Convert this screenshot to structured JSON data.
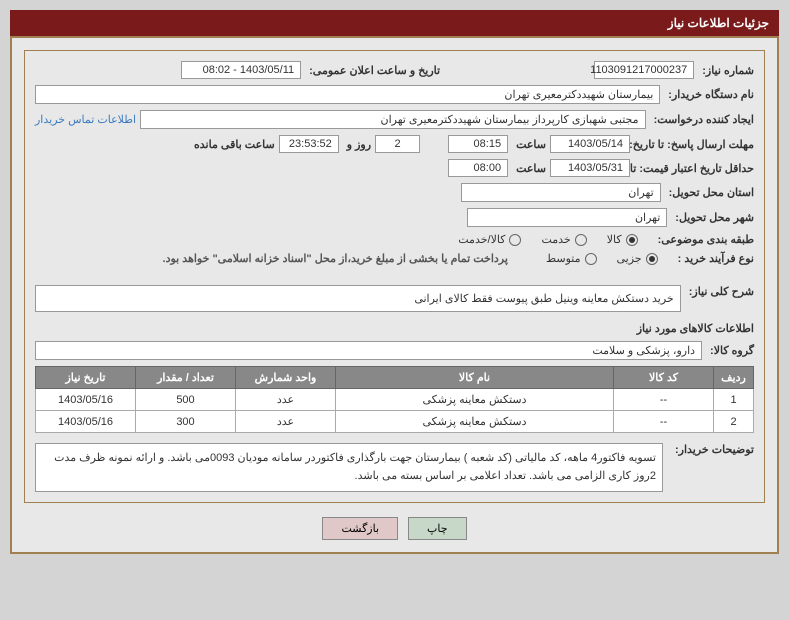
{
  "header_title": "جزئیات اطلاعات نیاز",
  "labels": {
    "need_no": "شماره نیاز:",
    "ann_datetime": "تاریخ و ساعت اعلان عمومی:",
    "buyer_org": "نام دستگاه خریدار:",
    "requester": "ایجاد کننده درخواست:",
    "deadline_resp": "مهلت ارسال پاسخ: تا تاریخ:",
    "time": "ساعت",
    "remaining": "ساعت باقی مانده",
    "day_and": "روز و",
    "min_validity": "حداقل تاریخ اعتبار قیمت: تا تاریخ:",
    "delivery_province": "استان محل تحویل:",
    "delivery_city": "شهر محل تحویل:",
    "subject_cat": "طبقه بندی موضوعی:",
    "process_type": "نوع فرآیند خرید :",
    "contact_info": "اطلاعات تماس خریدار",
    "payment_note": "پرداخت تمام یا بخشی از مبلغ خرید،از محل \"اسناد خزانه اسلامی\" خواهد بود.",
    "general_desc": "شرح کلی نیاز:",
    "items_info": "اطلاعات کالاهای مورد نیاز",
    "goods_group": "گروه کالا:",
    "buyer_notes_label": "توضیحات خریدار:"
  },
  "values": {
    "need_no": "1103091217000237",
    "ann_datetime": "1403/05/11 - 08:02",
    "buyer_org": "بیمارستان شهیددکترمعیری تهران",
    "requester": "مجتبی  شهبازی کارپرداز بیمارستان شهیددکترمعیری تهران",
    "resp_date": "1403/05/14",
    "resp_time": "08:15",
    "remaining_days": "2",
    "remaining_time": "23:53:52",
    "validity_date": "1403/05/31",
    "validity_time": "08:00",
    "province": "تهران",
    "city": "تهران",
    "general_desc": "خرید دستکش معاینه وینیل طبق پیوست فقط کالای ایرانی",
    "goods_group": "دارو، پزشکی و سلامت",
    "buyer_notes": "تسویه فاکتور4 ماهه، کد مالیاتی (کد شعبه ) بیمارستان جهت بارگذاری فاکتوردر سامانه مودیان 0093می باشد. و ارائه نمونه ظرف مدت 2روز کاری الزامی می باشد. تعداد اعلامی بر اساس بسته می باشد."
  },
  "radios": {
    "cat_goods": "کالا",
    "cat_service": "خدمت",
    "cat_both": "کالا/خدمت",
    "proc_partial": "جزیی",
    "proc_medium": "متوسط"
  },
  "table": {
    "headers": {
      "row": "ردیف",
      "code": "کد کالا",
      "name": "نام کالا",
      "unit": "واحد شمارش",
      "qty": "تعداد / مقدار",
      "date": "تاریخ نیاز"
    },
    "rows": [
      {
        "row": "1",
        "code": "--",
        "name": "دستکش معاینه پزشکی",
        "unit": "عدد",
        "qty": "500",
        "date": "1403/05/16"
      },
      {
        "row": "2",
        "code": "--",
        "name": "دستکش معاینه پزشکی",
        "unit": "عدد",
        "qty": "300",
        "date": "1403/05/16"
      }
    ]
  },
  "buttons": {
    "print": "چاپ",
    "back": "بازگشت"
  },
  "watermark": "AriaTender.net",
  "colors": {
    "header_bg": "#7a1a1a",
    "border": "#a08050",
    "th_bg": "#888888"
  }
}
